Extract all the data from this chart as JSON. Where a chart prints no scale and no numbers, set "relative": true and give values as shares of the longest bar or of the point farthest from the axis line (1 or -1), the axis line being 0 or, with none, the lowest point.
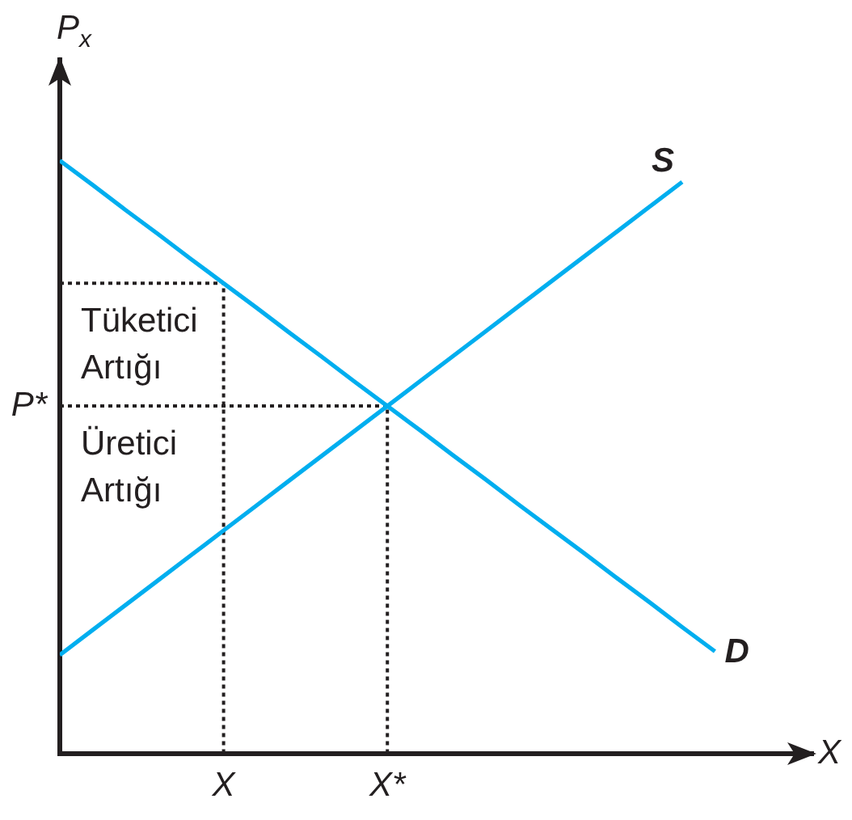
{
  "chart_data": {
    "type": "line",
    "relative": true,
    "xlabel": "X",
    "ylabel": "P$_{x}$",
    "categories": [
      null,
      null,
      null,
      null,
      null,
      "X",
      null,
      null,
      null,
      null,
      "X*",
      null,
      null,
      null,
      null,
      null,
      null,
      null,
      null,
      null,
      null
    ],
    "series": [
      {
        "name": "S",
        "color": "#00aeef",
        "values": [
          0.166,
          0.208,
          0.25,
          0.292,
          0.334,
          0.376,
          0.418,
          0.46,
          0.502,
          0.544,
          0.586,
          0.628,
          0.67,
          0.712,
          0.754,
          0.796,
          0.838,
          0.88,
          0.922,
          0.964,
          null
        ]
      },
      {
        "name": "D",
        "color": "#00aeef",
        "values": [
          1,
          0.959,
          0.917,
          0.876,
          0.834,
          0.793,
          0.752,
          0.71,
          0.669,
          0.627,
          0.586,
          0.545,
          0.503,
          0.462,
          0.42,
          0.379,
          0.338,
          0.296,
          0.255,
          0.213,
          0.172
        ]
      }
    ],
    "ref_lines": [
      {
        "axis": "y",
        "value": 0.793,
        "color": "#231f20",
        "line_style": "dotted"
      },
      {
        "axis": "y",
        "value": 0.586,
        "label": "P*",
        "color": "#231f20",
        "line_style": "dotted"
      },
      {
        "axis": "x",
        "value": "X",
        "color": "#231f20",
        "line_style": "dotted"
      },
      {
        "axis": "x",
        "value": "X*",
        "color": "#231f20",
        "line_style": "dotted"
      }
    ],
    "annotations": [
      "Tüketici Artığı",
      "Üretici Artığı"
    ],
    "grid": false,
    "legend": false,
    "marker": "none"
  }
}
